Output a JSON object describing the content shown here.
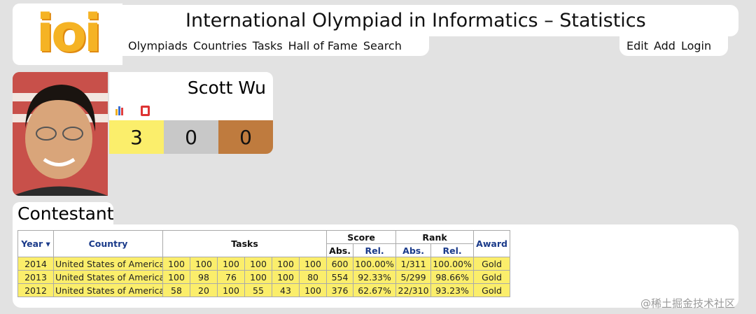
{
  "header": {
    "logo": "ioi",
    "title": "International Olympiad in Informatics – Statistics"
  },
  "nav": [
    "Olympiads",
    "Countries",
    "Tasks",
    "Hall of Fame",
    "Search"
  ],
  "nav_right": [
    "Edit",
    "Add",
    "Login"
  ],
  "profile": {
    "name": "Scott Wu",
    "medals": [
      3,
      0,
      0
    ]
  },
  "section_title": "Contestant",
  "table": {
    "headers": [
      "Year ▾",
      "Country",
      "Tasks",
      "Score",
      "Rank",
      "Award"
    ],
    "subheaders": [
      "Abs.",
      "Rel.",
      "Abs.",
      "Rel."
    ],
    "rows": [
      [
        2014,
        "United States of America",
        100,
        100,
        100,
        100,
        100,
        100,
        600,
        "100.00%",
        "1/311",
        "100.00%",
        "Gold"
      ],
      [
        2013,
        "United States of America",
        100,
        98,
        76,
        100,
        100,
        80,
        554,
        "92.33%",
        "5/299",
        "98.66%",
        "Gold"
      ],
      [
        2012,
        "United States of America",
        58,
        20,
        100,
        55,
        43,
        100,
        376,
        "62.67%",
        "22/310",
        "93.23%",
        "Gold"
      ]
    ]
  },
  "watermark": "@稀土掘金技术社区"
}
